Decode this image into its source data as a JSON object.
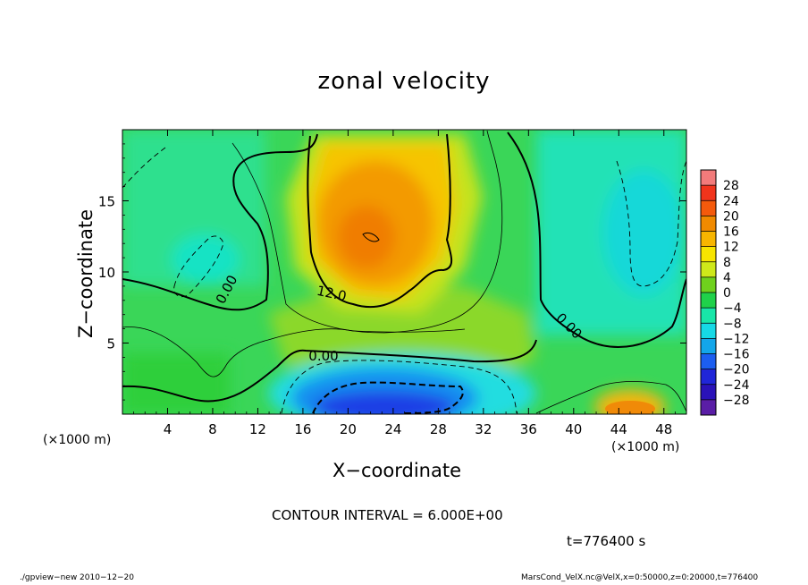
{
  "chart_data": {
    "type": "heatmap",
    "title": "zonal velocity",
    "xlabel": "X−coordinate",
    "ylabel": "Z−coordinate",
    "x_unit_left": "(×1000 m)",
    "x_unit_right": "(×1000 m)",
    "xlim": [
      0,
      50
    ],
    "ylim": [
      0,
      20
    ],
    "x_ticks": [
      4,
      8,
      12,
      16,
      20,
      24,
      28,
      32,
      36,
      40,
      44,
      48
    ],
    "y_ticks": [
      5,
      10,
      15
    ],
    "colorbar": {
      "levels": [
        28,
        24,
        20,
        16,
        12,
        8,
        4,
        0,
        -4,
        -8,
        -12,
        -16,
        -20,
        -24,
        -28
      ],
      "labels": [
        "28",
        "24",
        "20",
        "16",
        "12",
        "8",
        "4",
        "0",
        "−4",
        "−8",
        "−12",
        "−16",
        "−20",
        "−24",
        "−28"
      ],
      "colors": [
        "#f27b7b",
        "#f0341c",
        "#f45a0c",
        "#f08a00",
        "#f7b500",
        "#f7e400",
        "#cfe81a",
        "#6fd11d",
        "#1fd14a",
        "#18e6a8",
        "#16d9e6",
        "#13a6ea",
        "#1c5ef0",
        "#2026d8",
        "#2a12b8",
        "#5a1ea6"
      ]
    },
    "contour_labels": [
      "0.00",
      "0.00",
      "0.00",
      "12.0"
    ],
    "contour_interval": 6.0,
    "features": [
      {
        "label": "positive core",
        "x": 22,
        "z": 12.5,
        "value": 18
      },
      {
        "label": "negative core",
        "x": 24,
        "z": 1.0,
        "value": -22
      },
      {
        "label": "positive surface cell",
        "x": 46,
        "z": 0.7,
        "value": 16
      }
    ]
  },
  "notes": {
    "contour_interval": "CONTOUR INTERVAL = 6.000E+00",
    "time": "t=776400 s",
    "footer_left": "./gpview−new   2010−12−20",
    "footer_right": "MarsCond_VelX.nc@VelX,x=0:50000,z=0:20000,t=776400"
  }
}
